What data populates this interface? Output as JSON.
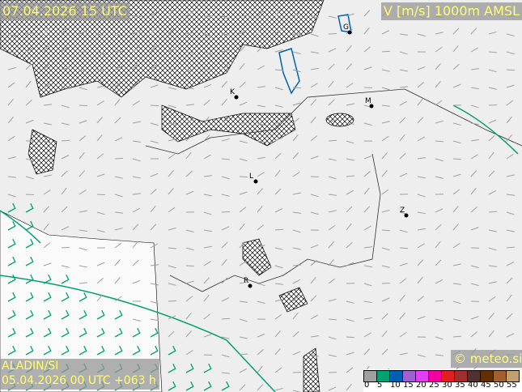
{
  "header": {
    "valid_time": "07.04.2026 15 UTC",
    "field": "V [m/s] 1000m AMSL"
  },
  "footer": {
    "model": "ALADIN/SI",
    "run": "05.04.2026 00 UTC +063 h",
    "copyright": "© meteo.si"
  },
  "legend": {
    "labels": [
      "0",
      "5",
      "10",
      "15",
      "20",
      "25",
      "30",
      "35",
      "40",
      "45",
      "50",
      "55"
    ],
    "colors": [
      "#a0a0a0",
      "#00a070",
      "#0060b0",
      "#a060d0",
      "#e040f0",
      "#f000a0",
      "#e02020",
      "#a03030",
      "#503030",
      "#603000",
      "#a06030",
      "#c0a070"
    ]
  },
  "cities": [
    {
      "label": "K"
    },
    {
      "label": "M"
    },
    {
      "label": "L"
    },
    {
      "label": "Z"
    },
    {
      "label": "R"
    },
    {
      "label": "G"
    }
  ],
  "colors": {
    "barb_light": "#a0a0a0",
    "barb_strong": "#00a070",
    "contour_blue": "#0060b0",
    "yellow_text": "#ffff70"
  }
}
